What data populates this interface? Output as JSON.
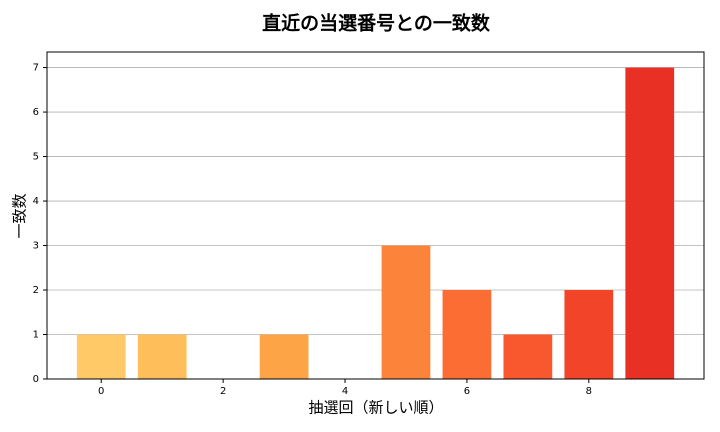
{
  "chart_data": {
    "type": "bar",
    "title": "直近の当選番号との一致数",
    "x_label": "抽選回（新しい順）",
    "y_label": "一致数",
    "x": [
      0,
      1,
      2,
      3,
      4,
      5,
      6,
      7,
      8,
      9
    ],
    "values": [
      1,
      1,
      0,
      1,
      0,
      3,
      2,
      1,
      2,
      7
    ],
    "colors": [
      "#fec966",
      "#febe5a",
      "#feb24c",
      "#fda446",
      "#fd9540",
      "#fc843a",
      "#fb6d33",
      "#f9572d",
      "#f24428",
      "#e93024"
    ],
    "xlim": [
      -0.89,
      9.89
    ],
    "xticks": [
      0,
      2,
      4,
      6,
      8
    ],
    "ylim": [
      0,
      7.35
    ],
    "yticks": [
      0,
      1,
      2,
      3,
      4,
      5,
      6,
      7
    ],
    "grid": true
  }
}
